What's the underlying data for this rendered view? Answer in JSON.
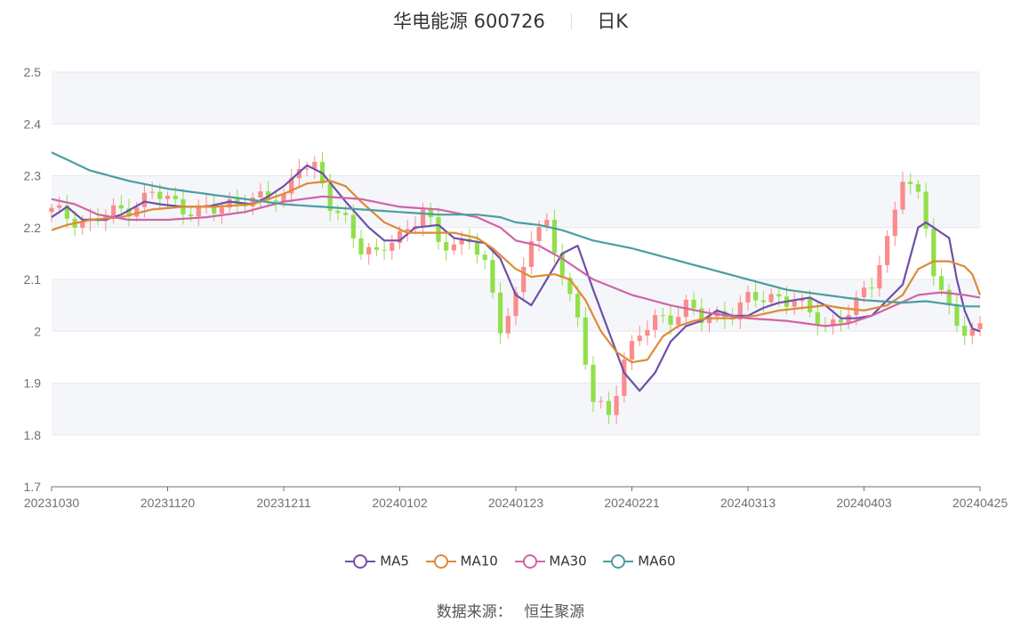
{
  "header": {
    "stock_name": "华电能源",
    "stock_code": "600726",
    "period": "日K"
  },
  "footer": {
    "source_label": "数据来源：",
    "source_value": "恒生聚源"
  },
  "colors": {
    "up": "#fb8c8c",
    "down": "#91e04a",
    "band": "#f5f6fa",
    "grid": "#e5e8ef",
    "axis": "#6e7079"
  },
  "chart_data": {
    "type": "candlestick",
    "title": "华电能源 600726 日K",
    "ylim": [
      1.7,
      2.5
    ],
    "y_ticks": [
      "1.7",
      "1.8",
      "1.9",
      "2",
      "2.1",
      "2.2",
      "2.3",
      "2.4",
      "2.5"
    ],
    "x_ticks": [
      {
        "label": "20231030",
        "index": 0
      },
      {
        "label": "20231120",
        "index": 15
      },
      {
        "label": "20231211",
        "index": 30
      },
      {
        "label": "20240102",
        "index": 45
      },
      {
        "label": "20240123",
        "index": 60
      },
      {
        "label": "20240221",
        "index": 75
      },
      {
        "label": "20240313",
        "index": 90
      },
      {
        "label": "20240403",
        "index": 105
      },
      {
        "label": "20240425",
        "index": 120
      }
    ],
    "n_points": 121,
    "series": [
      {
        "name": "MA5",
        "color": "#6f4fa8",
        "anchors": [
          [
            0,
            2.22
          ],
          [
            2,
            2.24
          ],
          [
            4,
            2.215
          ],
          [
            7,
            2.215
          ],
          [
            9,
            2.225
          ],
          [
            12,
            2.25
          ],
          [
            14,
            2.245
          ],
          [
            17,
            2.24
          ],
          [
            20,
            2.24
          ],
          [
            23,
            2.25
          ],
          [
            26,
            2.245
          ],
          [
            28,
            2.26
          ],
          [
            30,
            2.28
          ],
          [
            33,
            2.32
          ],
          [
            35,
            2.305
          ],
          [
            38,
            2.25
          ],
          [
            41,
            2.2
          ],
          [
            43,
            2.175
          ],
          [
            45,
            2.175
          ],
          [
            47,
            2.2
          ],
          [
            50,
            2.205
          ],
          [
            52,
            2.18
          ],
          [
            54,
            2.175
          ],
          [
            56,
            2.17
          ],
          [
            58,
            2.14
          ],
          [
            60,
            2.07
          ],
          [
            62,
            2.05
          ],
          [
            64,
            2.1
          ],
          [
            66,
            2.15
          ],
          [
            68,
            2.165
          ],
          [
            70,
            2.08
          ],
          [
            72,
            2.0
          ],
          [
            74,
            1.92
          ],
          [
            76,
            1.885
          ],
          [
            78,
            1.92
          ],
          [
            80,
            1.98
          ],
          [
            82,
            2.01
          ],
          [
            84,
            2.02
          ],
          [
            86,
            2.04
          ],
          [
            88,
            2.03
          ],
          [
            90,
            2.03
          ],
          [
            92,
            2.045
          ],
          [
            94,
            2.055
          ],
          [
            96,
            2.06
          ],
          [
            98,
            2.065
          ],
          [
            100,
            2.05
          ],
          [
            102,
            2.025
          ],
          [
            104,
            2.025
          ],
          [
            106,
            2.03
          ],
          [
            108,
            2.06
          ],
          [
            110,
            2.09
          ],
          [
            112,
            2.2
          ],
          [
            113,
            2.21
          ],
          [
            115,
            2.19
          ],
          [
            116,
            2.18
          ],
          [
            117,
            2.1
          ],
          [
            118,
            2.04
          ],
          [
            119,
            2.005
          ],
          [
            120,
            2.0
          ]
        ]
      },
      {
        "name": "MA10",
        "color": "#de8a35",
        "anchors": [
          [
            0,
            2.195
          ],
          [
            2,
            2.205
          ],
          [
            5,
            2.215
          ],
          [
            9,
            2.22
          ],
          [
            13,
            2.235
          ],
          [
            17,
            2.24
          ],
          [
            21,
            2.24
          ],
          [
            26,
            2.245
          ],
          [
            30,
            2.265
          ],
          [
            33,
            2.285
          ],
          [
            36,
            2.29
          ],
          [
            38,
            2.28
          ],
          [
            40,
            2.25
          ],
          [
            43,
            2.21
          ],
          [
            46,
            2.19
          ],
          [
            49,
            2.19
          ],
          [
            52,
            2.19
          ],
          [
            55,
            2.18
          ],
          [
            57,
            2.16
          ],
          [
            60,
            2.12
          ],
          [
            62,
            2.105
          ],
          [
            65,
            2.11
          ],
          [
            67,
            2.1
          ],
          [
            69,
            2.06
          ],
          [
            71,
            2.0
          ],
          [
            73,
            1.96
          ],
          [
            75,
            1.94
          ],
          [
            77,
            1.945
          ],
          [
            79,
            1.99
          ],
          [
            81,
            2.01
          ],
          [
            83,
            2.02
          ],
          [
            85,
            2.025
          ],
          [
            88,
            2.025
          ],
          [
            91,
            2.03
          ],
          [
            94,
            2.04
          ],
          [
            97,
            2.045
          ],
          [
            100,
            2.05
          ],
          [
            102,
            2.045
          ],
          [
            105,
            2.04
          ],
          [
            108,
            2.05
          ],
          [
            110,
            2.07
          ],
          [
            112,
            2.12
          ],
          [
            114,
            2.135
          ],
          [
            116,
            2.135
          ],
          [
            118,
            2.125
          ],
          [
            119,
            2.11
          ],
          [
            120,
            2.07
          ]
        ]
      },
      {
        "name": "MA30",
        "color": "#d064a6",
        "anchors": [
          [
            0,
            2.255
          ],
          [
            3,
            2.245
          ],
          [
            6,
            2.225
          ],
          [
            10,
            2.215
          ],
          [
            15,
            2.215
          ],
          [
            20,
            2.22
          ],
          [
            25,
            2.23
          ],
          [
            30,
            2.25
          ],
          [
            35,
            2.26
          ],
          [
            40,
            2.255
          ],
          [
            45,
            2.24
          ],
          [
            50,
            2.235
          ],
          [
            55,
            2.22
          ],
          [
            58,
            2.2
          ],
          [
            60,
            2.175
          ],
          [
            63,
            2.165
          ],
          [
            66,
            2.14
          ],
          [
            70,
            2.1
          ],
          [
            75,
            2.07
          ],
          [
            80,
            2.05
          ],
          [
            85,
            2.035
          ],
          [
            90,
            2.025
          ],
          [
            95,
            2.02
          ],
          [
            100,
            2.01
          ],
          [
            103,
            2.015
          ],
          [
            106,
            2.03
          ],
          [
            109,
            2.05
          ],
          [
            112,
            2.07
          ],
          [
            115,
            2.075
          ],
          [
            118,
            2.07
          ],
          [
            120,
            2.065
          ]
        ]
      },
      {
        "name": "MA60",
        "color": "#4b9e9f",
        "anchors": [
          [
            0,
            2.345
          ],
          [
            5,
            2.31
          ],
          [
            10,
            2.29
          ],
          [
            15,
            2.275
          ],
          [
            20,
            2.265
          ],
          [
            25,
            2.255
          ],
          [
            30,
            2.245
          ],
          [
            35,
            2.24
          ],
          [
            40,
            2.235
          ],
          [
            45,
            2.23
          ],
          [
            50,
            2.225
          ],
          [
            55,
            2.225
          ],
          [
            58,
            2.22
          ],
          [
            60,
            2.21
          ],
          [
            63,
            2.205
          ],
          [
            66,
            2.195
          ],
          [
            70,
            2.175
          ],
          [
            75,
            2.16
          ],
          [
            80,
            2.14
          ],
          [
            85,
            2.12
          ],
          [
            90,
            2.1
          ],
          [
            95,
            2.08
          ],
          [
            100,
            2.07
          ],
          [
            105,
            2.06
          ],
          [
            110,
            2.055
          ],
          [
            113,
            2.058
          ],
          [
            116,
            2.052
          ],
          [
            118,
            2.048
          ],
          [
            120,
            2.048
          ]
        ]
      }
    ],
    "candle_anchors": [
      [
        0,
        2.23
      ],
      [
        5,
        2.21
      ],
      [
        10,
        2.24
      ],
      [
        13,
        2.265
      ],
      [
        17,
        2.24
      ],
      [
        21,
        2.23
      ],
      [
        25,
        2.26
      ],
      [
        28,
        2.25
      ],
      [
        30,
        2.26
      ],
      [
        32,
        2.33
      ],
      [
        34,
        2.31
      ],
      [
        36,
        2.24
      ],
      [
        38,
        2.22
      ],
      [
        40,
        2.16
      ],
      [
        42,
        2.14
      ],
      [
        44,
        2.18
      ],
      [
        46,
        2.2
      ],
      [
        48,
        2.23
      ],
      [
        50,
        2.17
      ],
      [
        52,
        2.17
      ],
      [
        54,
        2.18
      ],
      [
        56,
        2.12
      ],
      [
        58,
        2.01
      ],
      [
        60,
        2.07
      ],
      [
        62,
        2.18
      ],
      [
        64,
        2.2
      ],
      [
        66,
        2.12
      ],
      [
        68,
        2.02
      ],
      [
        70,
        1.86
      ],
      [
        72,
        1.84
      ],
      [
        74,
        1.95
      ],
      [
        76,
        1.99
      ],
      [
        78,
        2.02
      ],
      [
        80,
        2.03
      ],
      [
        82,
        2.05
      ],
      [
        84,
        2.02
      ],
      [
        86,
        2.03
      ],
      [
        88,
        2.04
      ],
      [
        90,
        2.06
      ],
      [
        92,
        2.06
      ],
      [
        94,
        2.07
      ],
      [
        96,
        2.06
      ],
      [
        98,
        2.03
      ],
      [
        100,
        2.01
      ],
      [
        102,
        2.03
      ],
      [
        104,
        2.05
      ],
      [
        106,
        2.09
      ],
      [
        108,
        2.18
      ],
      [
        110,
        2.3
      ],
      [
        112,
        2.25
      ],
      [
        113,
        2.2
      ],
      [
        114,
        2.12
      ],
      [
        115,
        2.08
      ],
      [
        116,
        2.05
      ],
      [
        117,
        2.02
      ],
      [
        118,
        1.99
      ],
      [
        119,
        1.985
      ],
      [
        120,
        2.01
      ]
    ]
  },
  "legend": {
    "items": [
      "MA5",
      "MA10",
      "MA30",
      "MA60"
    ]
  }
}
